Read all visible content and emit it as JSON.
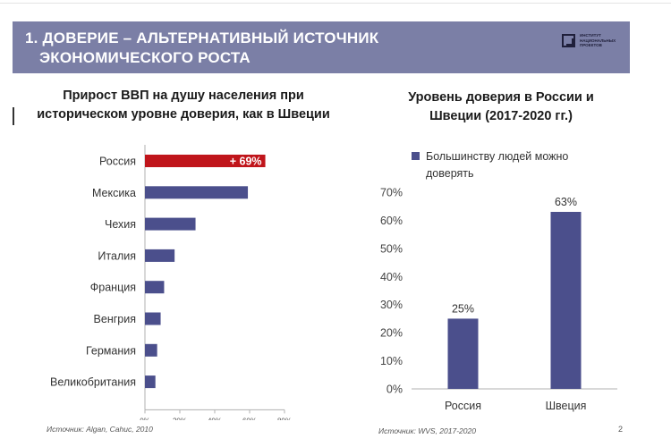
{
  "banner": {
    "line1": "1. ДОВЕРИЕ – АЛЬТЕРНАТИВНЫЙ ИСТОЧНИК",
    "line2": "ЭКОНОМИЧЕСКОГО РОСТА",
    "logo_text": "ИНСТИТУТ НАЦИОНАЛЬНЫХ ПРОЕКТОВ"
  },
  "left": {
    "title_line1": "Прирост ВВП на душу населения при",
    "title_line2": "историческом уровне доверия, как в Швеции",
    "source": "Источник: Algan, Cahuc, 2010"
  },
  "right": {
    "title_line1": "Уровень доверия в России и",
    "title_line2": "Швеции (2017-2020 гг.)",
    "source": "Источник: WVS, 2017-2020"
  },
  "page_number": "2",
  "chart_data": [
    {
      "type": "bar",
      "orientation": "horizontal",
      "title": "Прирост ВВП на душу населения при историческом уровне доверия, как в Швеции",
      "categories": [
        "Россия",
        "Мексика",
        "Чехия",
        "Италия",
        "Франция",
        "Венгрия",
        "Германия",
        "Великобритания"
      ],
      "values": [
        69,
        59,
        29,
        17,
        11,
        9,
        7,
        6
      ],
      "data_labels": [
        "+ 69%",
        "",
        "",
        "",
        "",
        "",
        "",
        ""
      ],
      "highlight": {
        "index": 0,
        "color": "#c0151b"
      },
      "bar_color": "#4b4f8c",
      "xlim": [
        0,
        80
      ],
      "xticks": [
        "0%",
        "20%",
        "40%",
        "60%",
        "80%"
      ],
      "grid": false
    },
    {
      "type": "bar",
      "orientation": "vertical",
      "title": "Уровень доверия в России и Швеции (2017-2020 гг.)",
      "categories": [
        "Россия",
        "Швеция"
      ],
      "series": [
        {
          "name": "Большинству людей можно доверять",
          "values": [
            25,
            63
          ]
        }
      ],
      "data_labels": [
        "25%",
        "63%"
      ],
      "bar_color": "#4b4f8c",
      "ylim": [
        0,
        70
      ],
      "yticks": [
        "0%",
        "10%",
        "20%",
        "30%",
        "40%",
        "50%",
        "60%",
        "70%"
      ],
      "legend": "top",
      "grid": false
    }
  ]
}
